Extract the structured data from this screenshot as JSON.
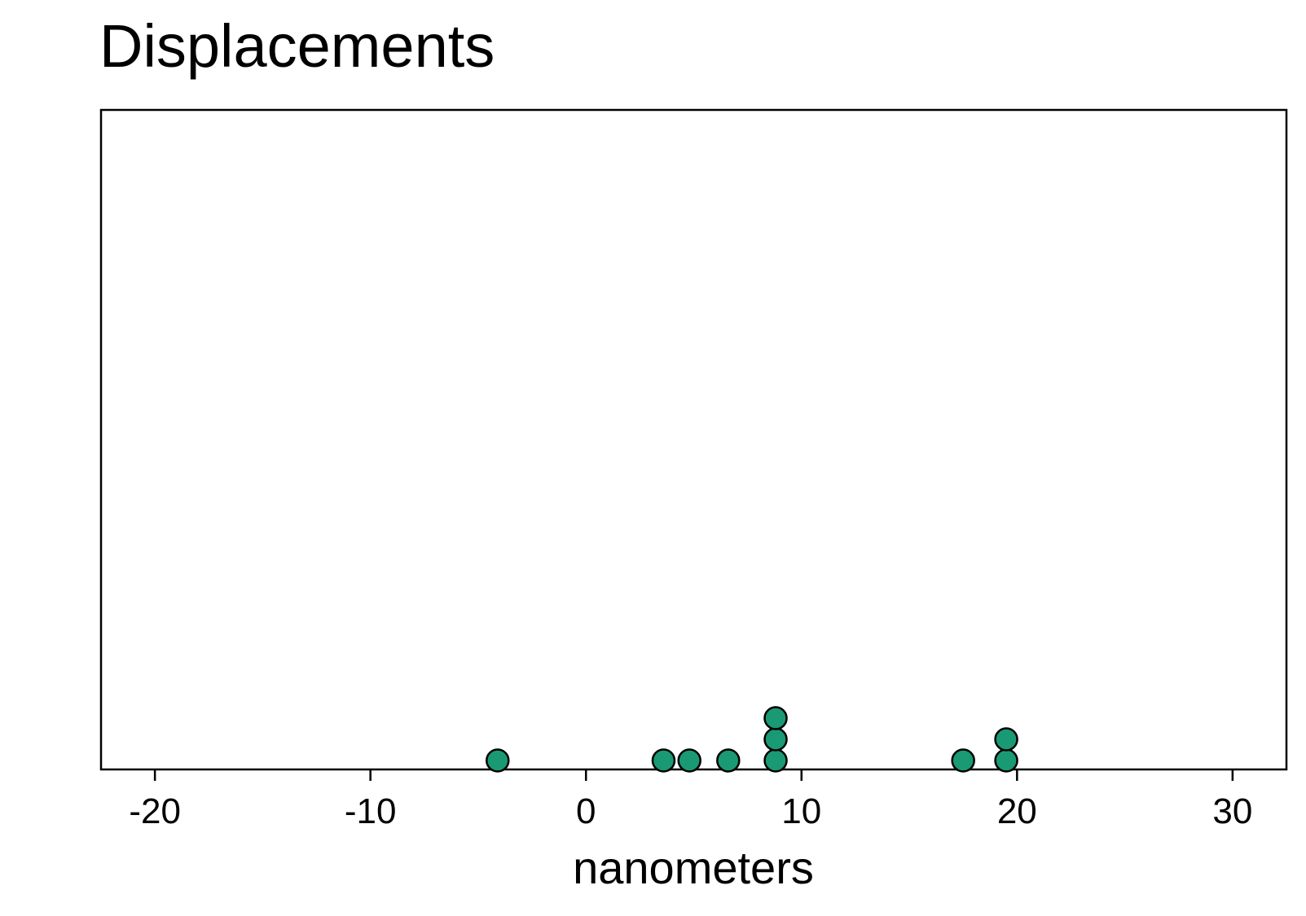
{
  "chart_data": {
    "type": "scatter",
    "subtype": "dotplot",
    "title": "Displacements",
    "xlabel": "nanometers",
    "ylabel": "",
    "xlim": [
      -22.5,
      32.5
    ],
    "xticks": [
      -20,
      -10,
      0,
      10,
      20,
      30
    ],
    "tick_labels": [
      "-20",
      "-10",
      "0",
      "10",
      "20",
      "30"
    ],
    "values": [
      -4.1,
      3.6,
      4.8,
      6.6,
      8.8,
      8.8,
      8.8,
      17.5,
      19.5,
      19.5
    ],
    "point_color": "#1a9a74",
    "point_edge_color": "#000000",
    "grid": false,
    "legend": "none"
  }
}
